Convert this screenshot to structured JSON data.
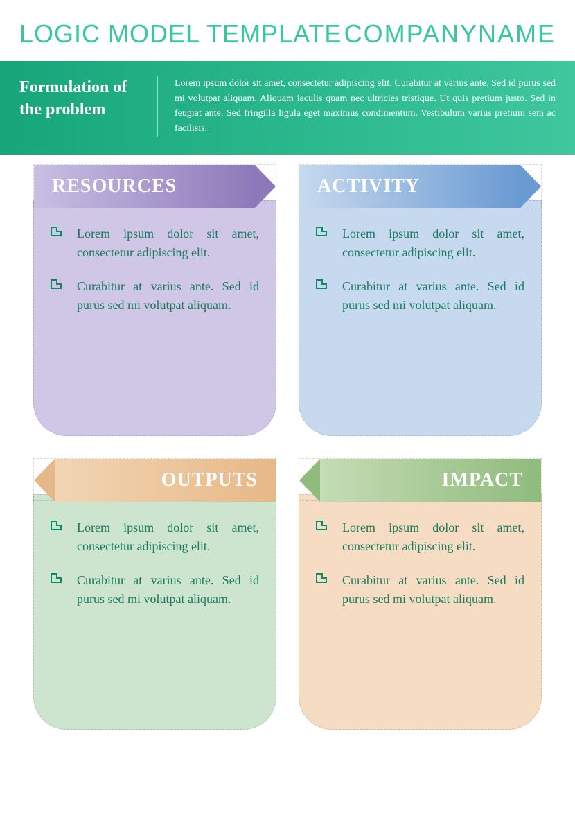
{
  "colors": {
    "accent": "#39c89e",
    "banner_gradient_from": "#16a67a",
    "banner_gradient_to": "#3fc79e",
    "body_text": "#1a7a5e",
    "bullet": "#0f8a66"
  },
  "header": {
    "title": "LOGIC MODEL TEMPLATE",
    "company": "COMPANYNAME"
  },
  "banner": {
    "title": "Formulation of the problem",
    "body": "Lorem ipsum dolor sit amet, consectetur adipiscing elit. Curabitur at varius ante. Sed id purus sed mi volutpat aliquam. Aliquam iaculis quam nec ultricies tristique. Ut quis pretium justo. Sed in feugiat ante. Sed fringilla ligula eget maximus condimentum. Vestibulum varius pretium sem ac facilisis."
  },
  "cards": [
    {
      "key": "resources",
      "title": "RESOURCES",
      "arrow_dir": "right",
      "arrow_grad_from": "#c9bfe4",
      "arrow_grad_to": "#8d79b9",
      "body_bg": "#d0c6e6",
      "items": [
        "Lorem ipsum dolor sit amet, consectetur adipiscing elit.",
        "Curabitur at varius ante. Sed id purus sed mi volutpat aliquam."
      ]
    },
    {
      "key": "activity",
      "title": "ACTIVITY",
      "arrow_dir": "right",
      "arrow_grad_from": "#c6d9ef",
      "arrow_grad_to": "#6a9ad2",
      "body_bg": "#c6d9ef",
      "items": [
        "Lorem ipsum dolor sit amet, consectetur adipiscing elit.",
        "Curabitur at varius ante. Sed id purus sed mi volutpat aliquam."
      ]
    },
    {
      "key": "outputs",
      "title": "OUTPUTS",
      "arrow_dir": "left",
      "arrow_grad_from": "#e7b887",
      "arrow_grad_to": "#f2d5b4",
      "body_bg": "#cde4cf",
      "items": [
        "Lorem ipsum dolor sit amet, consectetur adipiscing elit.",
        "Curabitur at varius ante. Sed id purus sed mi volutpat aliquam."
      ]
    },
    {
      "key": "impact",
      "title": "IMPACT",
      "arrow_dir": "left",
      "arrow_grad_from": "#8fbb7d",
      "arrow_grad_to": "#c6dcb4",
      "body_bg": "#f6dcc2",
      "items": [
        "Lorem ipsum dolor sit amet, consectetur adipiscing elit.",
        "Curabitur at varius ante. Sed id purus sed mi volutpat aliquam."
      ]
    }
  ]
}
